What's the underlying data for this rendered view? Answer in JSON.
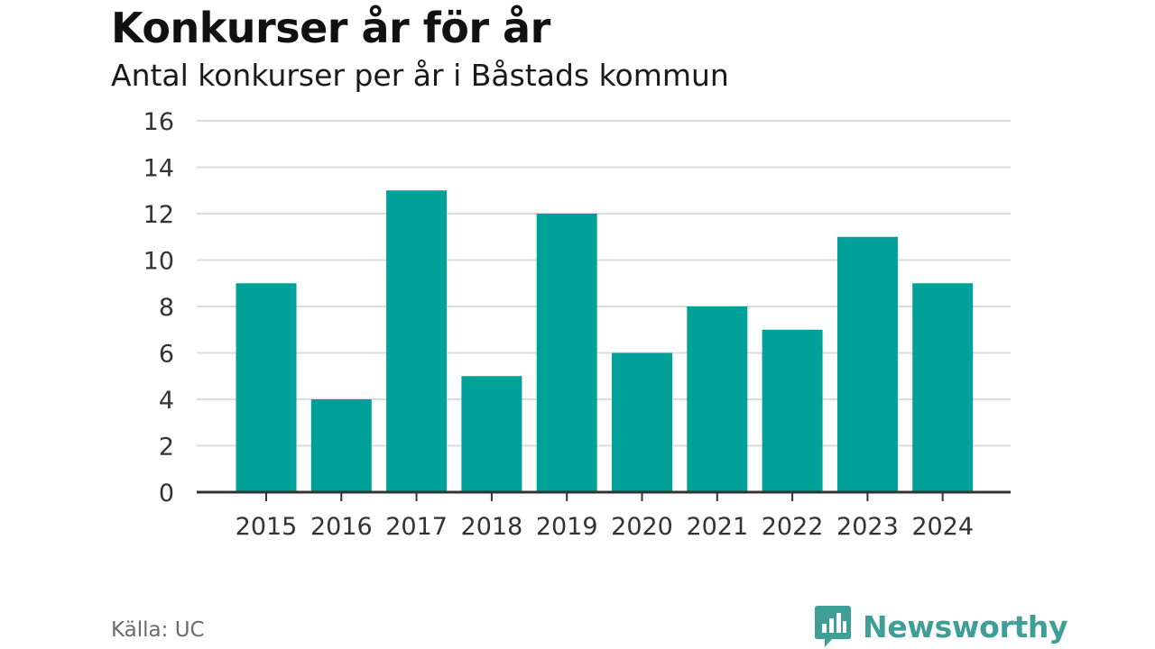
{
  "title": "Konkurser år för år",
  "subtitle": "Antal konkurser per år i Båstads kommun",
  "source": "Källa: UC",
  "brand": {
    "name": "Newsworthy",
    "icon": "bar-chart-speech-bubble-icon",
    "color": "#3f9f96"
  },
  "colors": {
    "bar": "#00a199",
    "grid": "#dcdcdc",
    "axis": "#333333"
  },
  "chart_data": {
    "type": "bar",
    "categories": [
      "2015",
      "2016",
      "2017",
      "2018",
      "2019",
      "2020",
      "2021",
      "2022",
      "2023",
      "2024"
    ],
    "values": [
      9,
      4,
      13,
      5,
      12,
      6,
      8,
      7,
      11,
      9
    ],
    "yticks": [
      0,
      2,
      4,
      6,
      8,
      10,
      12,
      14,
      16
    ],
    "ylim": [
      0,
      16
    ],
    "grid": true,
    "legend": "none"
  }
}
